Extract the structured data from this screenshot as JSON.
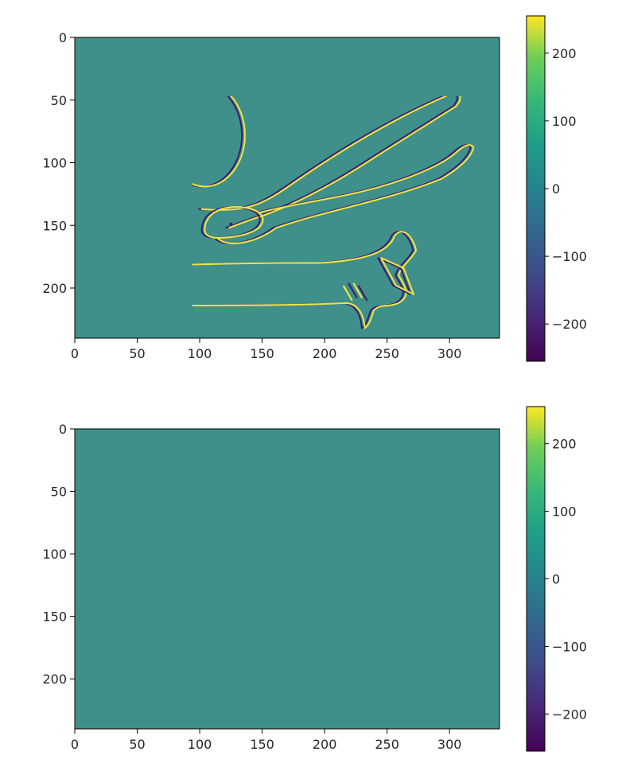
{
  "chart_data": [
    {
      "type": "heatmap",
      "image_size": [
        340,
        240
      ],
      "xlim": [
        0,
        340
      ],
      "ylim": [
        240,
        0
      ],
      "x_ticks": [
        0,
        50,
        100,
        150,
        200,
        250,
        300
      ],
      "y_ticks": [
        0,
        50,
        100,
        150,
        200
      ],
      "colormap": "viridis",
      "background_value": 0,
      "colorbar": {
        "range": [
          -255,
          255
        ],
        "ticks": [
          200,
          100,
          0,
          -100,
          -200
        ],
        "tick_labels": [
          "200",
          "100",
          "0",
          "−100",
          "−200"
        ]
      },
      "edge_orientation": "vertical"
    },
    {
      "type": "heatmap",
      "image_size": [
        340,
        240
      ],
      "xlim": [
        0,
        340
      ],
      "ylim": [
        240,
        0
      ],
      "x_ticks": [
        0,
        50,
        100,
        150,
        200,
        250,
        300
      ],
      "y_ticks": [
        0,
        50,
        100,
        150,
        200
      ],
      "colormap": "viridis",
      "background_value": 0,
      "colorbar": {
        "range": [
          -255,
          255
        ],
        "ticks": [
          200,
          100,
          0,
          -100,
          -200
        ],
        "tick_labels": [
          "200",
          "100",
          "0",
          "−100",
          "−200"
        ]
      },
      "edge_orientation": "horizontal"
    }
  ],
  "colors": {
    "background": "#3f8f8a",
    "positive_edge": "#f0e442",
    "negative_edge": "#3b1f6e",
    "mid_positive": "#7fd34e",
    "mid_negative": "#31588c"
  }
}
